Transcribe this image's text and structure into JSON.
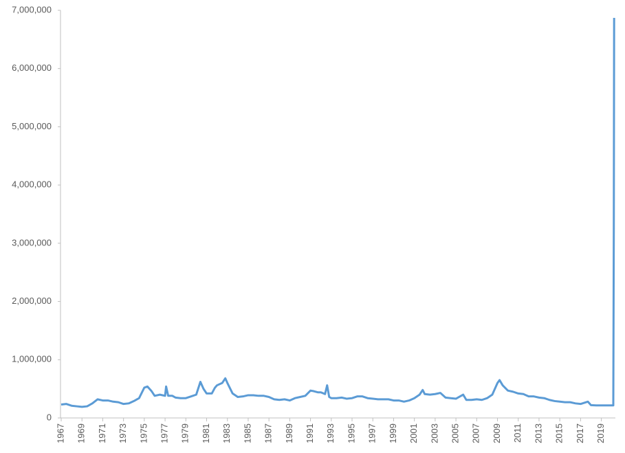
{
  "chart_data": {
    "type": "line",
    "color": "#5b9bd5",
    "x": [
      1967.0,
      1967.5,
      1968.0,
      1968.5,
      1969.0,
      1969.5,
      1970.0,
      1970.5,
      1971.0,
      1971.5,
      1972.0,
      1972.5,
      1973.0,
      1973.5,
      1974.0,
      1974.5,
      1975.0,
      1975.3,
      1975.7,
      1976.0,
      1976.5,
      1977.0,
      1977.1,
      1977.3,
      1977.7,
      1978.0,
      1978.5,
      1979.0,
      1979.5,
      1980.0,
      1980.4,
      1980.7,
      1981.0,
      1981.5,
      1981.8,
      1982.0,
      1982.5,
      1982.8,
      1983.0,
      1983.5,
      1984.0,
      1984.5,
      1985.0,
      1985.5,
      1986.0,
      1986.5,
      1987.0,
      1987.5,
      1988.0,
      1988.5,
      1989.0,
      1989.5,
      1990.0,
      1990.5,
      1991.0,
      1991.3,
      1991.7,
      1992.0,
      1992.4,
      1992.6,
      1992.8,
      1993.0,
      1993.5,
      1994.0,
      1994.5,
      1995.0,
      1995.5,
      1996.0,
      1996.5,
      1997.0,
      1997.5,
      1998.0,
      1998.5,
      1999.0,
      1999.5,
      2000.0,
      2000.5,
      2001.0,
      2001.5,
      2001.8,
      2002.0,
      2002.5,
      2003.0,
      2003.5,
      2004.0,
      2004.5,
      2005.0,
      2005.7,
      2006.0,
      2006.5,
      2007.0,
      2007.5,
      2008.0,
      2008.5,
      2009.0,
      2009.2,
      2009.5,
      2010.0,
      2010.5,
      2011.0,
      2011.5,
      2012.0,
      2012.5,
      2013.0,
      2013.5,
      2014.0,
      2014.5,
      2015.0,
      2015.5,
      2016.0,
      2016.5,
      2017.0,
      2017.7,
      2018.0,
      2018.5,
      2019.0,
      2019.5,
      2020.15,
      2020.2,
      2020.23
    ],
    "values": [
      230000,
      240000,
      210000,
      200000,
      190000,
      200000,
      250000,
      320000,
      300000,
      300000,
      280000,
      270000,
      240000,
      250000,
      290000,
      340000,
      520000,
      540000,
      460000,
      380000,
      400000,
      380000,
      540000,
      380000,
      380000,
      350000,
      340000,
      340000,
      370000,
      400000,
      620000,
      500000,
      420000,
      420000,
      520000,
      560000,
      600000,
      680000,
      600000,
      420000,
      360000,
      370000,
      390000,
      390000,
      380000,
      380000,
      360000,
      320000,
      310000,
      320000,
      300000,
      340000,
      360000,
      380000,
      470000,
      460000,
      440000,
      440000,
      410000,
      560000,
      360000,
      340000,
      340000,
      350000,
      330000,
      340000,
      370000,
      370000,
      340000,
      330000,
      320000,
      320000,
      320000,
      300000,
      300000,
      280000,
      300000,
      340000,
      400000,
      480000,
      410000,
      400000,
      410000,
      430000,
      350000,
      340000,
      330000,
      400000,
      310000,
      310000,
      320000,
      310000,
      340000,
      400000,
      600000,
      650000,
      560000,
      470000,
      450000,
      420000,
      410000,
      370000,
      370000,
      350000,
      340000,
      310000,
      290000,
      280000,
      270000,
      270000,
      250000,
      240000,
      280000,
      220000,
      215000,
      215000,
      215000,
      215000,
      3300000,
      6870000
    ],
    "xlim": [
      1967,
      2020.35
    ],
    "xticks": [
      1967,
      1969,
      1971,
      1973,
      1975,
      1977,
      1979,
      1981,
      1983,
      1985,
      1987,
      1989,
      1991,
      1993,
      1995,
      1997,
      1999,
      2001,
      2003,
      2005,
      2007,
      2009,
      2011,
      2013,
      2015,
      2017,
      2019
    ],
    "ylim": [
      0,
      7000000
    ],
    "yticks": [
      0,
      {
        "value": 1000000,
        "label": "1,000,000"
      },
      {
        "value": 2000000,
        "label": "2,000,000"
      },
      {
        "value": 3000000,
        "label": "3,000,000"
      },
      {
        "value": 4000000,
        "label": "4,000,000"
      },
      {
        "value": 5000000,
        "label": "5,000,000"
      },
      {
        "value": 6000000,
        "label": "6,000,000"
      },
      {
        "value": 7000000,
        "label": "7,000,000"
      }
    ]
  }
}
